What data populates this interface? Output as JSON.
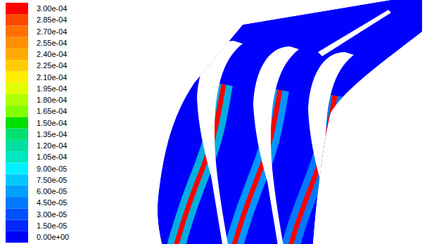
{
  "chart_data": {
    "type": "contour",
    "background": 0,
    "values": [
      0.0003,
      0.0003,
      0.0003
    ],
    "spread_values": [
      0.0001,
      7.5e-05,
      6e-05
    ],
    "colorbar": {
      "range": [
        0,
        0.0003
      ],
      "ticks": [
        {
          "value": 0,
          "label": "0.00e+00"
        },
        {
          "value": 1.5e-05,
          "label": "1.50e-05"
        },
        {
          "value": 3e-05,
          "label": "3.00e-05"
        },
        {
          "value": 4.5e-05,
          "label": "4.50e-05"
        },
        {
          "value": 6e-05,
          "label": "6.00e-05"
        },
        {
          "value": 7.5e-05,
          "label": "7.50e-05"
        },
        {
          "value": 9e-05,
          "label": "9.00e-05"
        },
        {
          "value": 0.000105,
          "label": "1.05e-04"
        },
        {
          "value": 0.00012,
          "label": "1.20e-04"
        },
        {
          "value": 0.000135,
          "label": "1.35e-04"
        },
        {
          "value": 0.00015,
          "label": "1.50e-04"
        },
        {
          "value": 0.000165,
          "label": "1.65e-04"
        },
        {
          "value": 0.00018,
          "label": "1.80e-04"
        },
        {
          "value": 0.000195,
          "label": "1.95e-04"
        },
        {
          "value": 0.00021,
          "label": "2.10e-04"
        },
        {
          "value": 0.000225,
          "label": "2.25e-04"
        },
        {
          "value": 0.00024,
          "label": "2.40e-04"
        },
        {
          "value": 0.000255,
          "label": "2.55e-04"
        },
        {
          "value": 0.00027,
          "label": "2.70e-04"
        },
        {
          "value": 0.000285,
          "label": "2.85e-04"
        },
        {
          "value": 0.0003,
          "label": "3.00e-04"
        }
      ],
      "colors": [
        "#0000ff",
        "#0028ff",
        "#0050ff",
        "#0078ff",
        "#00a0ff",
        "#00c8ff",
        "#00f0ff",
        "#00e6c0",
        "#00e0a0",
        "#00e070",
        "#00e000",
        "#80ff00",
        "#b0ff00",
        "#e0ff00",
        "#ffee00",
        "#ffcc00",
        "#ffaa00",
        "#ff9000",
        "#ff7000",
        "#ff4800",
        "#ff0000"
      ]
    }
  }
}
